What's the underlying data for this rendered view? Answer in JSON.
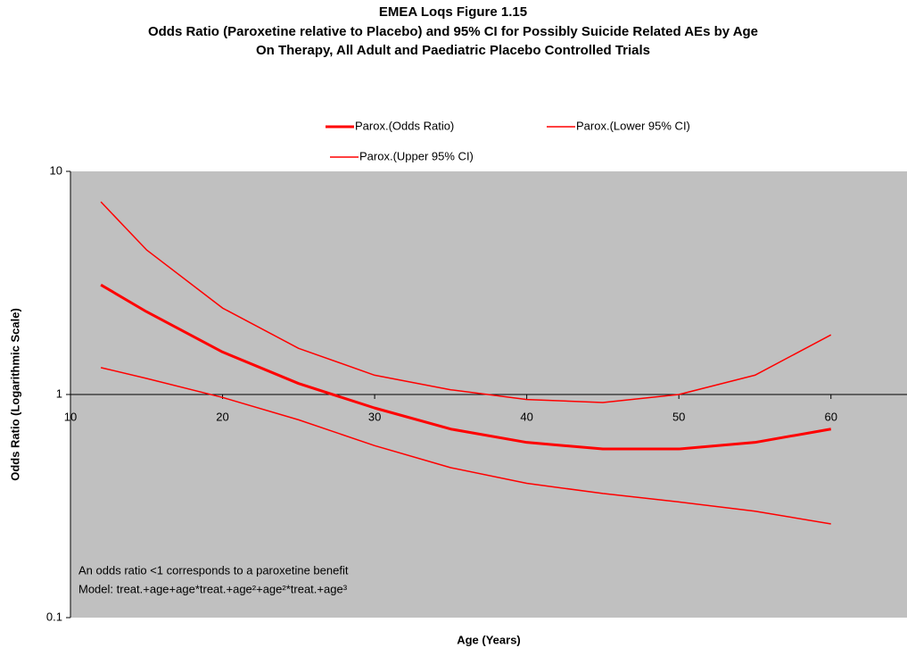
{
  "chart_data": {
    "type": "line",
    "title": "EMEA Loqs Figure 1.15",
    "subtitle": [
      "Odds Ratio (Paroxetine relative to Placebo) and 95% CI for Possibly Suicide Related AEs by Age",
      "On Therapy, All Adult and Paediatric Placebo Controlled Trials"
    ],
    "x_label": "Age (Years)",
    "y_label": "Odds Ratio (Logarithmic Scale)",
    "annotations": [
      "An odds ratio <1 corresponds to a paroxetine benefit",
      "Model: treat.+age+age*treat.+age²+age²*treat.+age³"
    ],
    "x": [
      12,
      15,
      20,
      25,
      30,
      35,
      40,
      45,
      50,
      55,
      60
    ],
    "series": [
      {
        "name": "Parox.(Odds Ratio)",
        "color": "#ff0000",
        "line_width": 3,
        "values": [
          3.1,
          2.35,
          1.55,
          1.12,
          0.87,
          0.7,
          0.61,
          0.57,
          0.57,
          0.61,
          0.7
        ]
      },
      {
        "name": "Parox.(Lower 95% CI)",
        "color": "#ff0000",
        "line_width": 1.5,
        "values": [
          1.32,
          1.18,
          0.97,
          0.77,
          0.59,
          0.47,
          0.4,
          0.36,
          0.33,
          0.3,
          0.263
        ]
      },
      {
        "name": "Parox.(Upper 95% CI)",
        "color": "#ff0000",
        "line_width": 1.5,
        "values": [
          7.3,
          4.45,
          2.44,
          1.61,
          1.22,
          1.05,
          0.95,
          0.92,
          1.0,
          1.22,
          1.85
        ]
      }
    ],
    "xlim": [
      10,
      65
    ],
    "xticks": [
      10,
      20,
      30,
      40,
      50,
      60
    ],
    "ylim": [
      0.1,
      10
    ],
    "yticks": [
      0.1,
      1,
      10
    ],
    "log_y": true,
    "x_axis_crosses_at": 1,
    "plot_background": "#c0c0c0",
    "grid": false
  }
}
